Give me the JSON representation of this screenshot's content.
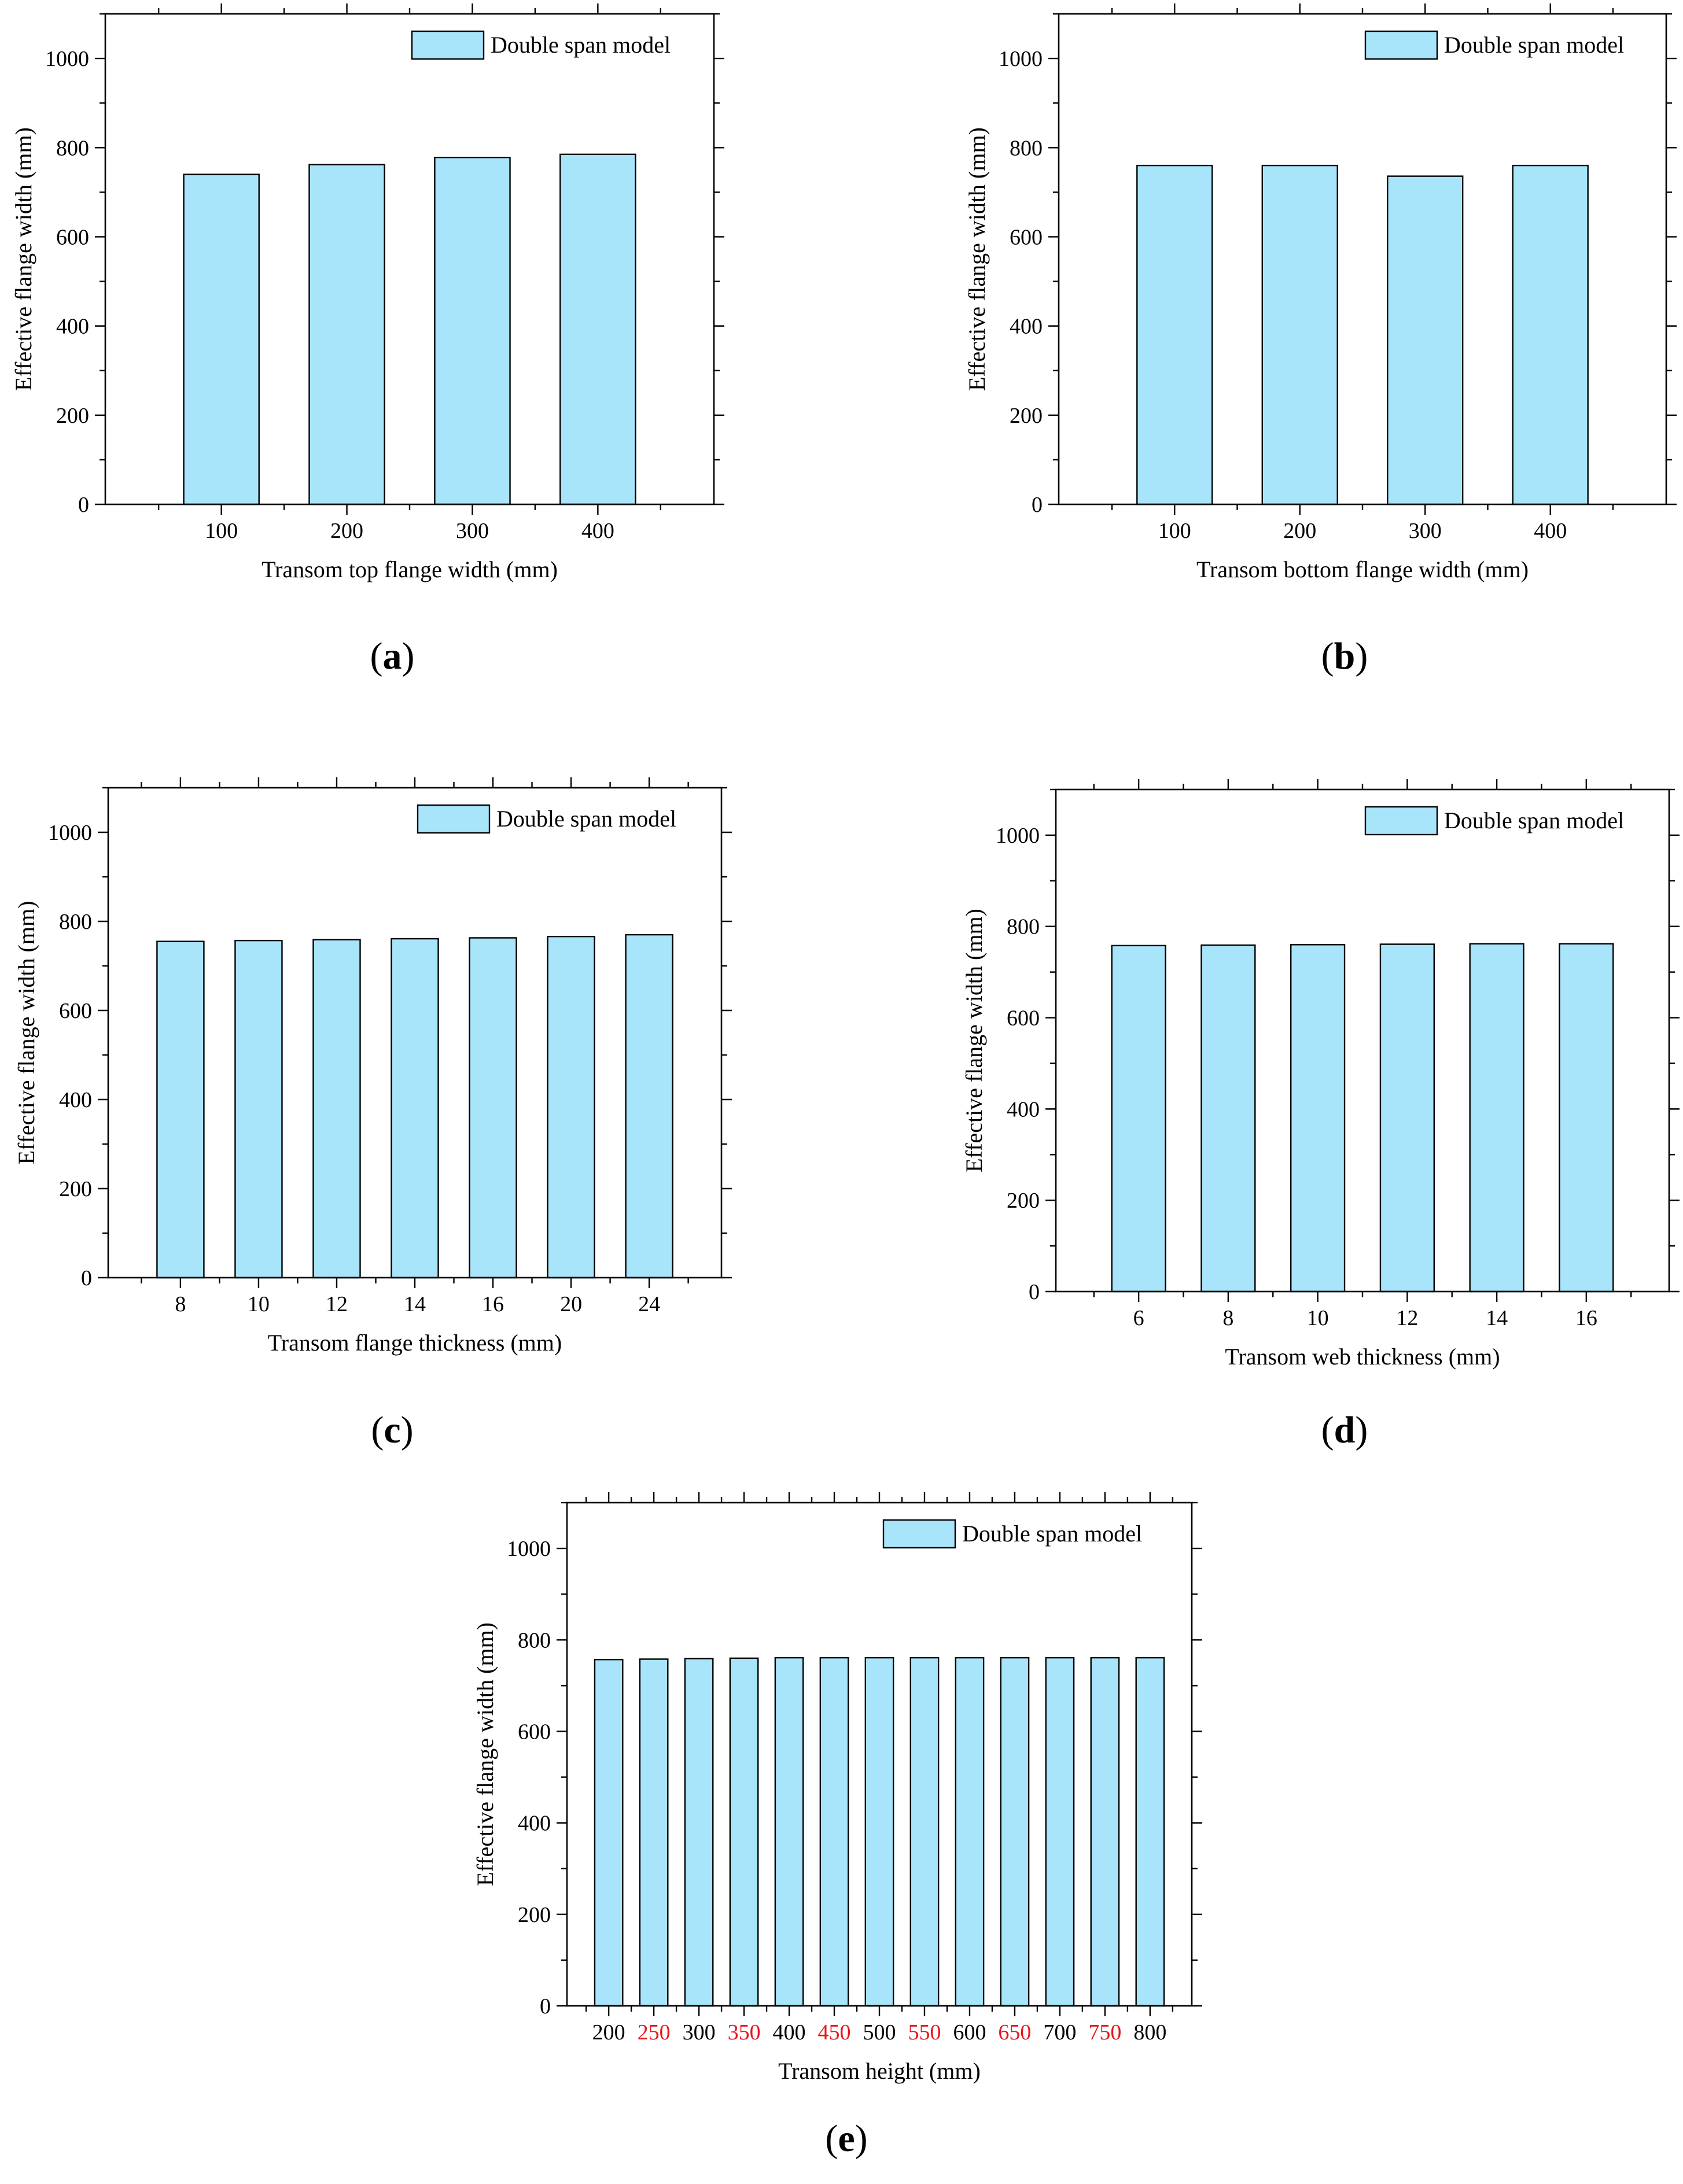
{
  "figure": {
    "panel_labels": [
      "(a)",
      "(b)",
      "(c)",
      "(d)",
      "(e)"
    ]
  },
  "colors": {
    "bar_fill": "#a8e4fa",
    "bar_stroke": "#000000",
    "highlight_tick": "#e8161b",
    "axis": "#000000"
  },
  "chart_data": [
    {
      "type": "bar",
      "panel": "(a)",
      "categories": [
        "100",
        "200",
        "300",
        "400"
      ],
      "values": [
        740,
        762,
        778,
        785
      ],
      "xlabel": "Transom top flange width (mm)",
      "ylabel": "Effective flange width (mm)",
      "ylim": [
        0,
        1100
      ],
      "yticks": [
        0,
        200,
        400,
        600,
        800,
        1000
      ],
      "legend": [
        "Double span model"
      ],
      "legend_position": "top-right",
      "highlight_categories": []
    },
    {
      "type": "bar",
      "panel": "(b)",
      "categories": [
        "100",
        "200",
        "300",
        "400"
      ],
      "values": [
        760,
        760,
        736,
        760
      ],
      "xlabel": "Transom bottom flange width (mm)",
      "ylabel": "Effective flange width (mm)",
      "ylim": [
        0,
        1100
      ],
      "yticks": [
        0,
        200,
        400,
        600,
        800,
        1000
      ],
      "legend": [
        "Double span model"
      ],
      "legend_position": "top-right",
      "highlight_categories": []
    },
    {
      "type": "bar",
      "panel": "(c)",
      "categories": [
        "8",
        "10",
        "12",
        "14",
        "16",
        "20",
        "24"
      ],
      "values": [
        755,
        757,
        759,
        761,
        763,
        766,
        770
      ],
      "xlabel": "Transom flange thickness (mm)",
      "ylabel": "Effective flange width (mm)",
      "ylim": [
        0,
        1100
      ],
      "yticks": [
        0,
        200,
        400,
        600,
        800,
        1000
      ],
      "legend": [
        "Double span model"
      ],
      "legend_position": "top-right",
      "highlight_categories": []
    },
    {
      "type": "bar",
      "panel": "(d)",
      "categories": [
        "6",
        "8",
        "10",
        "12",
        "14",
        "16"
      ],
      "values": [
        758,
        759,
        760,
        761,
        762,
        762
      ],
      "xlabel": "Transom web thickness (mm)",
      "ylabel": "Effective flange width (mm)",
      "ylim": [
        0,
        1100
      ],
      "yticks": [
        0,
        200,
        400,
        600,
        800,
        1000
      ],
      "legend": [
        "Double span model"
      ],
      "legend_position": "top-right",
      "highlight_categories": []
    },
    {
      "type": "bar",
      "panel": "(e)",
      "categories": [
        "200",
        "250",
        "300",
        "350",
        "400",
        "450",
        "500",
        "550",
        "600",
        "650",
        "700",
        "750",
        "800"
      ],
      "values": [
        757,
        758,
        759,
        760,
        761,
        761,
        761,
        761,
        761,
        761,
        761,
        761,
        761
      ],
      "xlabel": "Transom height (mm)",
      "ylabel": "Effective flange width (mm)",
      "ylim": [
        0,
        1100
      ],
      "yticks": [
        0,
        200,
        400,
        600,
        800,
        1000
      ],
      "legend": [
        "Double span model"
      ],
      "legend_position": "top-right",
      "highlight_categories": [
        "250",
        "350",
        "450",
        "550",
        "650",
        "750"
      ]
    }
  ]
}
